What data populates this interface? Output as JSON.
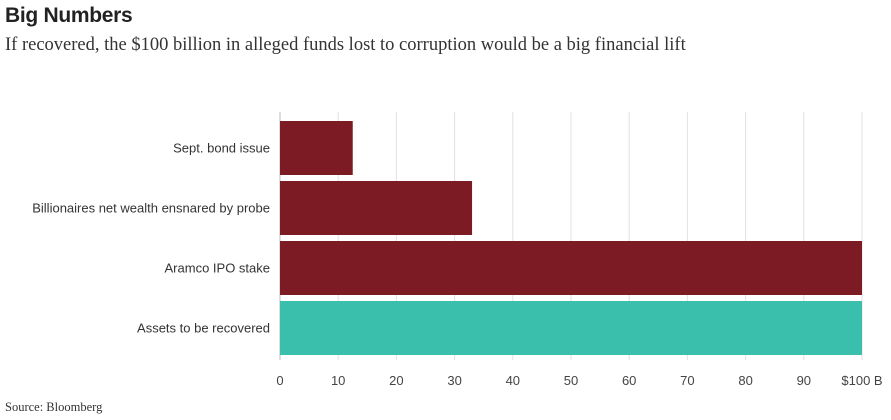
{
  "title": "Big Numbers",
  "subtitle": "If recovered, the $100 billion in alleged funds lost to corruption would be a big financial lift",
  "source": "Source: Bloomberg",
  "colors": {
    "default_bar": "#7d1b24",
    "highlight_bar": "#3bbfad",
    "grid": "#e2e2e2"
  },
  "chart_data": {
    "type": "bar",
    "orientation": "horizontal",
    "categories": [
      "Sept. bond issue",
      "Billionaires net wealth ensnared by probe",
      "Aramco IPO stake",
      "Assets to be recovered"
    ],
    "values": [
      12.5,
      33,
      100,
      100
    ],
    "highlight": [
      false,
      false,
      false,
      true
    ],
    "xlim": [
      0,
      100
    ],
    "ticks": [
      0,
      10,
      20,
      30,
      40,
      50,
      60,
      70,
      80,
      90,
      100
    ],
    "tick_labels": [
      "0",
      "10",
      "20",
      "30",
      "40",
      "50",
      "60",
      "70",
      "80",
      "90",
      "$100 B"
    ],
    "grid": true
  }
}
